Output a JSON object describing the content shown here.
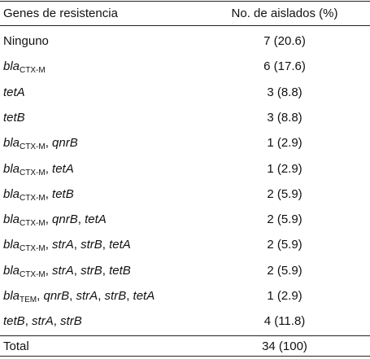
{
  "table": {
    "header": {
      "genes": "Genes de resistencia",
      "isolates": "No. de aislados (%)"
    },
    "rows": [
      {
        "genes": [
          {
            "text": "Ninguno",
            "italic": false
          }
        ],
        "isolates": "7 (20.6)"
      },
      {
        "genes": [
          {
            "text": "bla",
            "sub": "CTX-M",
            "italic": true
          }
        ],
        "isolates": "6 (17.6)"
      },
      {
        "genes": [
          {
            "text": "tetA",
            "italic": true
          }
        ],
        "isolates": "3 (8.8)"
      },
      {
        "genes": [
          {
            "text": "tetB",
            "italic": true
          }
        ],
        "isolates": "3 (8.8)"
      },
      {
        "genes": [
          {
            "text": "bla",
            "sub": "CTX-M",
            "italic": true
          },
          {
            "text": ", ",
            "italic": false
          },
          {
            "text": "qnrB",
            "italic": true
          }
        ],
        "isolates": "1 (2.9)"
      },
      {
        "genes": [
          {
            "text": "bla",
            "sub": "CTX-M",
            "italic": true
          },
          {
            "text": ", ",
            "italic": false
          },
          {
            "text": "tetA",
            "italic": true
          }
        ],
        "isolates": "1 (2.9)"
      },
      {
        "genes": [
          {
            "text": "bla",
            "sub": "CTX-M",
            "italic": true
          },
          {
            "text": ", ",
            "italic": false
          },
          {
            "text": "tetB",
            "italic": true
          }
        ],
        "isolates": "2 (5.9)"
      },
      {
        "genes": [
          {
            "text": "bla",
            "sub": "CTX-M",
            "italic": true
          },
          {
            "text": ", ",
            "italic": false
          },
          {
            "text": "qnrB",
            "italic": true
          },
          {
            "text": ", ",
            "italic": false
          },
          {
            "text": "tetA",
            "italic": true
          }
        ],
        "isolates": "2 (5.9)"
      },
      {
        "genes": [
          {
            "text": "bla",
            "sub": "CTX-M",
            "italic": true
          },
          {
            "text": ", ",
            "italic": false
          },
          {
            "text": "strA",
            "italic": true
          },
          {
            "text": ", ",
            "italic": false
          },
          {
            "text": "strB",
            "italic": true
          },
          {
            "text": ", ",
            "italic": false
          },
          {
            "text": "tetA",
            "italic": true
          }
        ],
        "isolates": "2 (5.9)"
      },
      {
        "genes": [
          {
            "text": "bla",
            "sub": "CTX-M",
            "italic": true
          },
          {
            "text": ", ",
            "italic": false
          },
          {
            "text": "strA",
            "italic": true
          },
          {
            "text": ", ",
            "italic": false
          },
          {
            "text": "strB",
            "italic": true
          },
          {
            "text": ", ",
            "italic": false
          },
          {
            "text": "tetB",
            "italic": true
          }
        ],
        "isolates": "2 (5.9)"
      },
      {
        "genes": [
          {
            "text": "bla",
            "sub": "TEM",
            "italic": true
          },
          {
            "text": ", ",
            "italic": false
          },
          {
            "text": "qnrB",
            "italic": true
          },
          {
            "text": ", ",
            "italic": false
          },
          {
            "text": "strA",
            "italic": true
          },
          {
            "text": ", ",
            "italic": false
          },
          {
            "text": "strB",
            "italic": true
          },
          {
            "text": ", ",
            "italic": false
          },
          {
            "text": "tetA",
            "italic": true
          }
        ],
        "isolates": "1 (2.9)"
      },
      {
        "genes": [
          {
            "text": "tetB",
            "italic": true
          },
          {
            "text": ", ",
            "italic": false
          },
          {
            "text": "strA",
            "italic": true
          },
          {
            "text": ", ",
            "italic": false
          },
          {
            "text": "strB",
            "italic": true
          }
        ],
        "isolates": "4 (11.8)"
      }
    ],
    "total": {
      "label": "Total",
      "isolates": "34 (100)"
    }
  }
}
